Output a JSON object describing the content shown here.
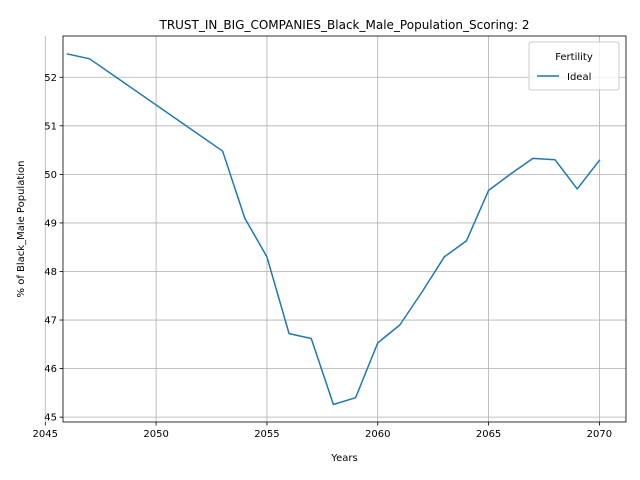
{
  "chart_data": {
    "type": "line",
    "title": "TRUST_IN_BIG_COMPANIES_Black_Male_Population_Scoring: 2",
    "xlabel": "Years",
    "ylabel": "% of Black_Male Population",
    "xlim": [
      2045.8,
      2071.2
    ],
    "ylim": [
      44.9,
      52.85
    ],
    "xticks": [
      2045,
      2050,
      2055,
      2060,
      2065,
      2070
    ],
    "yticks": [
      45,
      46,
      47,
      48,
      49,
      50,
      51,
      52
    ],
    "grid": true,
    "legend": {
      "title": "Fertility",
      "placement": "top-right"
    },
    "series": [
      {
        "name": "Ideal",
        "color": "#1f77b4",
        "x": [
          2046,
          2047,
          2053,
          2054,
          2055,
          2056,
          2057,
          2058,
          2059,
          2060,
          2061,
          2062,
          2063,
          2064,
          2065,
          2066,
          2067,
          2068,
          2069,
          2070
        ],
        "y": [
          52.48,
          52.38,
          50.48,
          49.1,
          48.3,
          46.72,
          46.62,
          45.26,
          45.4,
          46.53,
          46.9,
          47.58,
          48.3,
          48.63,
          49.67,
          50.01,
          50.33,
          50.3,
          49.7,
          50.29
        ]
      }
    ]
  }
}
